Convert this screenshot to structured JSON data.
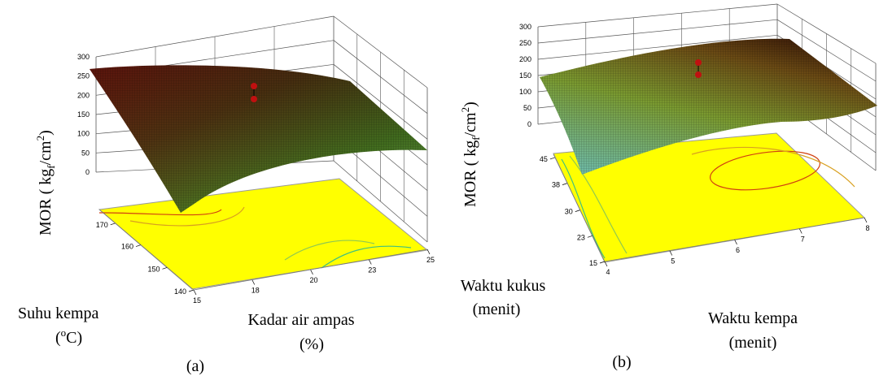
{
  "chart_data": [
    {
      "type": "surface3d",
      "panel_label": "(a)",
      "zlabel_main": "MOR ( kg",
      "zlabel_sub": "f",
      "zlabel_mid": "/cm",
      "zlabel_sup": "2",
      "zlabel_end": ")",
      "z_ticks": [
        "0",
        "50",
        "100",
        "150",
        "200",
        "250",
        "300"
      ],
      "zlim": [
        0,
        300
      ],
      "x_axis": {
        "label_line1": "Kadar air ampas",
        "label_line2": "(%)",
        "ticks": [
          "15",
          "18",
          "20",
          "23",
          "25"
        ],
        "range": [
          15,
          25
        ]
      },
      "y_axis": {
        "label_line1": "Suhu kempa",
        "label_line2_pre": "(",
        "label_line2_sup": "o",
        "label_line2_post": "C)",
        "ticks": [
          "140",
          "150",
          "160",
          "170"
        ],
        "range": [
          140,
          180
        ]
      },
      "design_points_z": [
        205,
        212
      ],
      "surface_z": [
        [
          265,
          255,
          242,
          222,
          198
        ],
        [
          250,
          240,
          228,
          208,
          185
        ],
        [
          232,
          224,
          212,
          192,
          168
        ],
        [
          210,
          200,
          188,
          170,
          145
        ],
        [
          178,
          168,
          158,
          140,
          118
        ]
      ],
      "contour_colors": [
        "#d04010",
        "#d8a020",
        "#90c850",
        "#40c080"
      ],
      "floor_color": "#ffff00"
    },
    {
      "type": "surface3d",
      "panel_label": "(b)",
      "zlabel_main": "MOR ( kg",
      "zlabel_sub": "f",
      "zlabel_mid": "/cm",
      "zlabel_sup": "2",
      "zlabel_end": ")",
      "z_ticks": [
        "0",
        "50",
        "100",
        "150",
        "200",
        "250",
        "300"
      ],
      "zlim": [
        0,
        300
      ],
      "x_axis": {
        "label_line1": "Waktu kempa",
        "label_line2": "(menit)",
        "ticks": [
          "4",
          "5",
          "6",
          "7",
          "8"
        ],
        "range": [
          4,
          8
        ]
      },
      "y_axis": {
        "label_line1": "Waktu kukus",
        "label_line2": "(menit)",
        "ticks": [
          "15",
          "23",
          "30",
          "38",
          "45"
        ],
        "range": [
          15,
          45
        ]
      },
      "design_points_z": [
        205,
        195
      ],
      "surface_z": [
        [
          150,
          185,
          210,
          220,
          205
        ],
        [
          160,
          200,
          228,
          238,
          222
        ],
        [
          165,
          208,
          238,
          250,
          232
        ],
        [
          160,
          203,
          232,
          242,
          225
        ],
        [
          145,
          188,
          215,
          225,
          205
        ]
      ],
      "contour_colors": [
        "#d04010",
        "#d8a020",
        "#90c850",
        "#40c080"
      ],
      "floor_color": "#ffff00"
    }
  ]
}
